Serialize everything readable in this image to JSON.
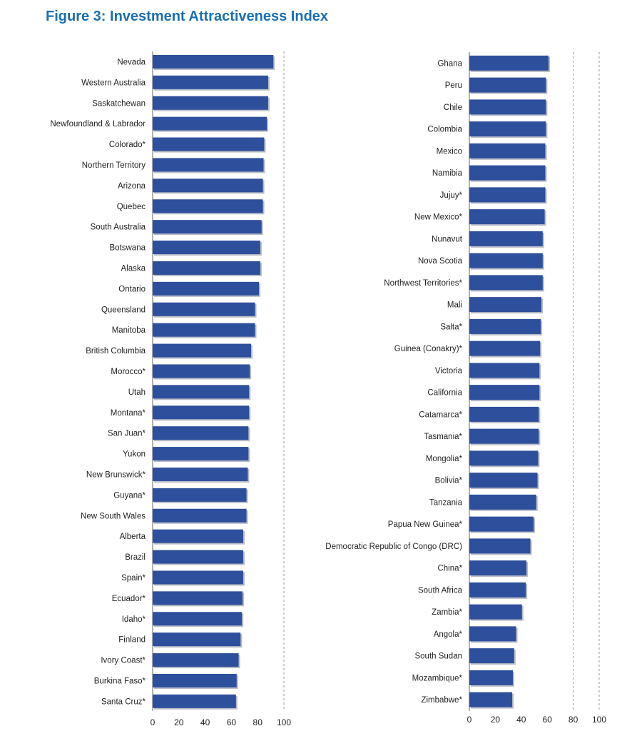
{
  "title": "Figure 3: Investment Attractiveness Index",
  "colors": {
    "bar": "#2e4f9c",
    "bar_shadow": "#b9bcc6",
    "grid": "#9a9a9a",
    "title": "#1b6fb0"
  },
  "chart_data": [
    {
      "type": "bar",
      "orientation": "horizontal",
      "xlim": [
        0,
        100
      ],
      "xticks": [
        "0",
        "20",
        "40",
        "60",
        "80",
        "100"
      ],
      "grid": "dashed vertical at 100",
      "categories": [
        "Nevada",
        "Western Australia",
        "Saskatchewan",
        "Newfoundland & Labrador",
        "Colorado*",
        "Northern Territory",
        "Arizona",
        "Quebec",
        "South Australia",
        "Botswana",
        "Alaska",
        "Ontario",
        "Queensland",
        "Manitoba",
        "British Columbia",
        "Morocco*",
        "Utah",
        "Montana*",
        "San Juan*",
        "Yukon",
        "New Brunswick*",
        "Guyana*",
        "New South Wales",
        "Alberta",
        "Brazil",
        "Spain*",
        "Ecuador*",
        "Idaho*",
        "Finland",
        "Ivory Coast*",
        "Burkina Faso*",
        "Santa Cruz*"
      ],
      "values": [
        92,
        88,
        88,
        87,
        85,
        84.5,
        84,
        84,
        83,
        82,
        82,
        81,
        78,
        78,
        75,
        74,
        73.5,
        73.5,
        73,
        73,
        72.5,
        71.5,
        71.5,
        69,
        69,
        69,
        68.5,
        68,
        67,
        65.5,
        64,
        63.5
      ]
    },
    {
      "type": "bar",
      "orientation": "horizontal",
      "xlim": [
        0,
        100
      ],
      "xticks": [
        "0",
        "20",
        "40",
        "60",
        "80",
        "100"
      ],
      "grid": "dashed vertical at 80 and 100",
      "categories": [
        "Ghana",
        "Peru",
        "Chile",
        "Colombia",
        "Mexico",
        "Namibia",
        "Jujuy*",
        "New Mexico*",
        "Nunavut",
        "Nova Scotia",
        "Northwest Territories*",
        "Mali",
        "Salta*",
        "Guinea (Conakry)*",
        "Victoria",
        "California",
        "Catamarca*",
        "Tasmania*",
        "Mongolia*",
        "Bolivia*",
        "Tanzania",
        "Papua New Guinea*",
        "Democratic Republic of Congo (DRC)",
        "China*",
        "South Africa",
        "Zambia*",
        "Angola*",
        "South Sudan",
        "Mozambique*",
        "Zimbabwe*"
      ],
      "values": [
        61,
        59,
        59,
        59,
        58.5,
        58.5,
        58.5,
        58,
        56.5,
        56.5,
        56.5,
        55.5,
        55,
        54.5,
        54,
        54,
        53.5,
        53.5,
        53,
        52.5,
        51.5,
        49.5,
        47,
        44,
        43.5,
        40.5,
        36,
        34.5,
        33.5,
        33
      ]
    }
  ]
}
